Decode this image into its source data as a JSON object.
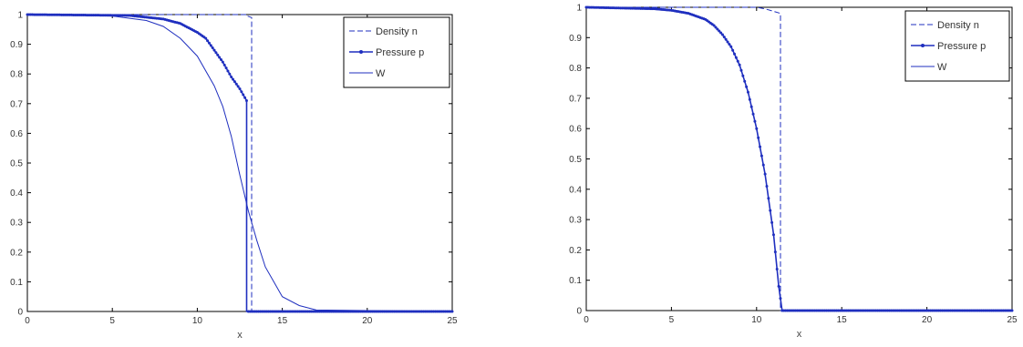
{
  "colors": {
    "line": "#1f2fbf",
    "axis": "#000000",
    "background": "#ffffff"
  },
  "chart_data": [
    {
      "type": "line",
      "title": "",
      "xlabel": "x",
      "ylabel": "",
      "xlim": [
        0,
        25
      ],
      "ylim": [
        0,
        1
      ],
      "xticks": [
        "0",
        "5",
        "10",
        "15",
        "20",
        "25"
      ],
      "yticks": [
        "0",
        "0.1",
        "0.2",
        "0.3",
        "0.4",
        "0.5",
        "0.6",
        "0.7",
        "0.8",
        "0.9",
        "1"
      ],
      "grid": false,
      "legend_position": "top-right",
      "series": [
        {
          "name": "Density n",
          "style": "dashed",
          "x": [
            0,
            12.9,
            12.9,
            13.2,
            13.2,
            25
          ],
          "y": [
            1,
            1,
            0.996,
            0.99,
            0,
            0
          ]
        },
        {
          "name": "Pressure p",
          "style": "solid-dotted",
          "x": [
            0,
            6,
            8,
            9,
            10,
            10.5,
            11,
            11.5,
            12,
            12.5,
            12.9,
            12.9,
            13.1,
            25
          ],
          "y": [
            1,
            0.997,
            0.985,
            0.97,
            0.94,
            0.92,
            0.88,
            0.84,
            0.79,
            0.75,
            0.71,
            0,
            0,
            0
          ]
        },
        {
          "name": "W",
          "style": "solid",
          "x": [
            0,
            5,
            7,
            8,
            9,
            10,
            11,
            11.5,
            12,
            12.5,
            13,
            13.5,
            14,
            14.5,
            15,
            16,
            17,
            25
          ],
          "y": [
            1,
            0.995,
            0.98,
            0.96,
            0.92,
            0.86,
            0.76,
            0.69,
            0.59,
            0.46,
            0.34,
            0.24,
            0.15,
            0.1,
            0.05,
            0.02,
            0.005,
            0
          ]
        }
      ]
    },
    {
      "type": "line",
      "title": "",
      "xlabel": "x",
      "ylabel": "",
      "xlim": [
        0,
        25
      ],
      "ylim": [
        0,
        1
      ],
      "xticks": [
        "0",
        "5",
        "10",
        "15",
        "20",
        "25"
      ],
      "yticks": [
        "0",
        "0.1",
        "0.2",
        "0.3",
        "0.4",
        "0.5",
        "0.6",
        "0.7",
        "0.8",
        "0.9",
        "1"
      ],
      "grid": false,
      "legend_position": "top-right",
      "series": [
        {
          "name": "Density n",
          "style": "dashed",
          "x": [
            0,
            10,
            10.5,
            11.1,
            11.4,
            11.4,
            25
          ],
          "y": [
            1,
            1,
            0.995,
            0.985,
            0.98,
            0,
            0
          ]
        },
        {
          "name": "Pressure p",
          "style": "solid-dotted",
          "x": [
            0,
            4,
            5,
            6,
            7,
            7.5,
            8,
            8.5,
            9,
            9.5,
            10,
            10.5,
            11,
            11.3,
            11.5,
            25
          ],
          "y": [
            1,
            0.995,
            0.99,
            0.98,
            0.96,
            0.94,
            0.91,
            0.87,
            0.81,
            0.72,
            0.6,
            0.45,
            0.25,
            0.08,
            0,
            0
          ]
        },
        {
          "name": "W",
          "style": "solid",
          "x": [],
          "y": []
        }
      ]
    }
  ]
}
